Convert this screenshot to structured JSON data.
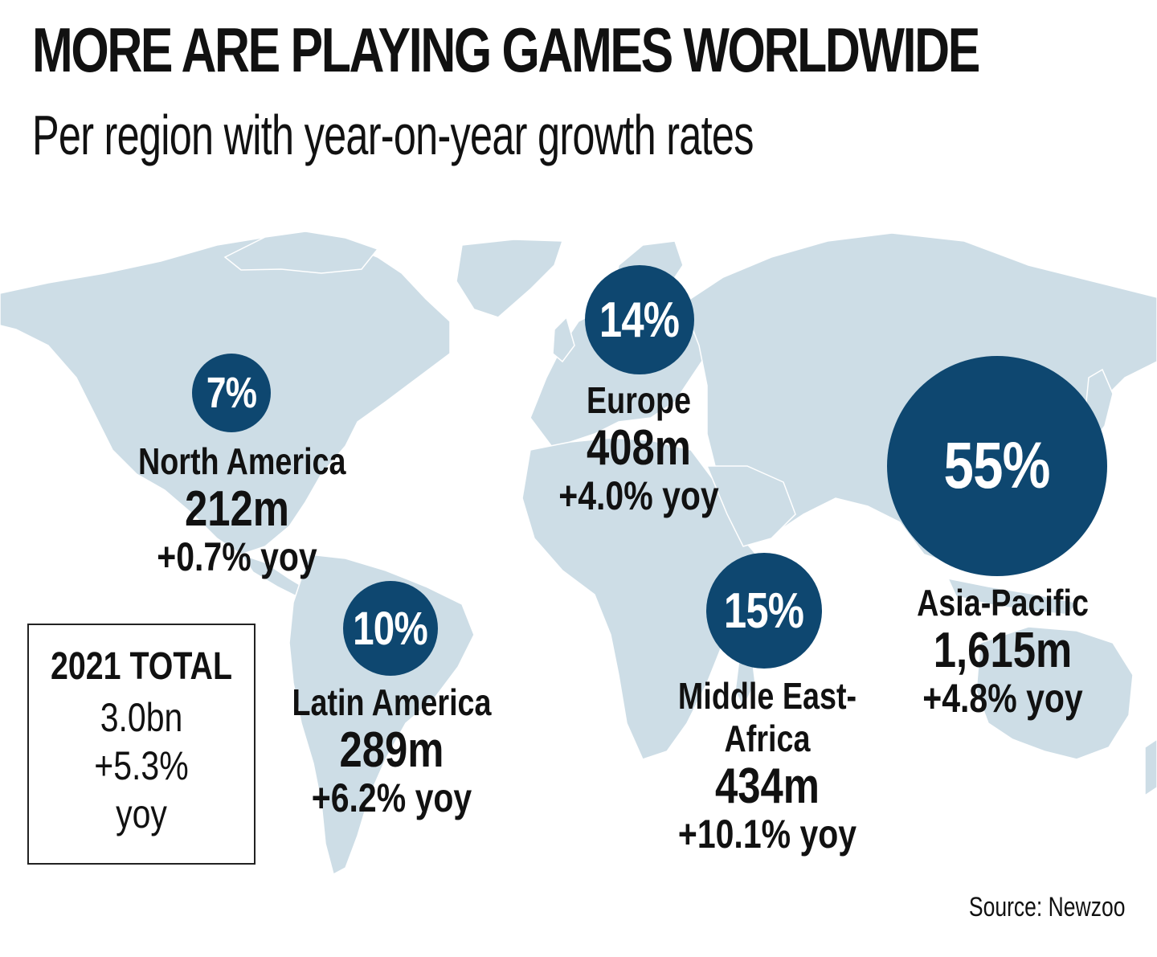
{
  "title": "MORE ARE PLAYING GAMES WORLDWIDE",
  "subtitle": "Per region with year-on-year growth rates",
  "colors": {
    "bubble": "#0e4770",
    "land": "#cddde6",
    "text": "#111111"
  },
  "regions": [
    {
      "share": "7%",
      "name": "North America",
      "players": "212m",
      "growth": "+0.7% yoy"
    },
    {
      "share": "14%",
      "name": "Europe",
      "players": "408m",
      "growth": "+4.0% yoy"
    },
    {
      "share": "55%",
      "name": "Asia-Pacific",
      "players": "1,615m",
      "growth": "+4.8% yoy"
    },
    {
      "share": "10%",
      "name": "Latin America",
      "players": "289m",
      "growth": "+6.2% yoy"
    },
    {
      "share": "15%",
      "name": "Middle East-Africa",
      "name_line1": "Middle East-",
      "name_line2": "Africa",
      "players": "434m",
      "growth": "+10.1% yoy"
    }
  ],
  "total": {
    "title": "2021 TOTAL",
    "value": "3.0bn",
    "growth_line1": "+5.3%",
    "growth_line2": "yoy"
  },
  "source": "Source: Newzoo"
}
